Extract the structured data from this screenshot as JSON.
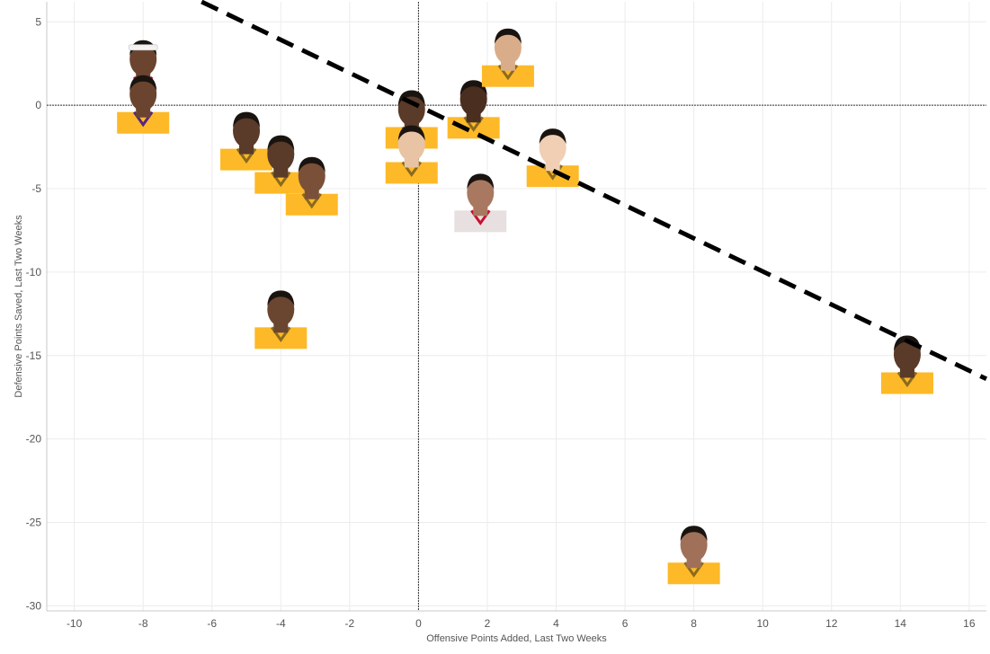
{
  "chart_data": {
    "type": "scatter",
    "xlabel": "Offensive Points Added, Last Two Weeks",
    "ylabel": "Defensive Points Saved, Last Two Weeks",
    "xlim": [
      -10.8,
      16.5
    ],
    "ylim": [
      -30.3,
      6.2
    ],
    "x_ticks": [
      -10,
      -8,
      -6,
      -4,
      -2,
      0,
      2,
      4,
      6,
      8,
      10,
      12,
      14,
      16
    ],
    "y_ticks": [
      5,
      0,
      -5,
      -10,
      -15,
      -20,
      -25,
      -30
    ],
    "grid": true,
    "zero_lines": true,
    "points": [
      {
        "x": -8,
        "y": 1.8,
        "jersey": "#ffffff",
        "trim": "#c8102e",
        "skin": "#6b4430",
        "headband": true
      },
      {
        "x": -8,
        "y": -0.3,
        "jersey": "#fdb927",
        "trim": "#552583",
        "skin": "#6b4430"
      },
      {
        "x": -5,
        "y": -2.5,
        "jersey": "#fdb927",
        "trim": "#8a6a1f",
        "skin": "#5a3a28"
      },
      {
        "x": -4,
        "y": -3.9,
        "jersey": "#fdb927",
        "trim": "#8a6a1f",
        "skin": "#5a3a28"
      },
      {
        "x": -3.1,
        "y": -5.2,
        "jersey": "#fdb927",
        "trim": "#8a6a1f",
        "skin": "#7a5038"
      },
      {
        "x": -4,
        "y": -13.2,
        "jersey": "#fdb927",
        "trim": "#8a6a1f",
        "skin": "#6a4530"
      },
      {
        "x": -0.2,
        "y": -1.2,
        "jersey": "#fdb927",
        "trim": "#8a6a1f",
        "skin": "#5a3a28"
      },
      {
        "x": -0.2,
        "y": -3.3,
        "jersey": "#fdb927",
        "trim": "#8a6a1f",
        "skin": "#e8c4a4"
      },
      {
        "x": 1.6,
        "y": -0.6,
        "jersey": "#fdb927",
        "trim": "#8a6a1f",
        "skin": "#4a2e20"
      },
      {
        "x": 2.6,
        "y": 2.5,
        "jersey": "#fdb927",
        "trim": "#8a6a1f",
        "skin": "#d9ad8a"
      },
      {
        "x": 3.9,
        "y": -3.5,
        "jersey": "#fdb927",
        "trim": "#8a6a1f",
        "skin": "#f0cfb4"
      },
      {
        "x": 1.8,
        "y": -6.2,
        "jersey": "#e8e0e0",
        "trim": "#c8102e",
        "skin": "#a87860"
      },
      {
        "x": 14.2,
        "y": -15.9,
        "jersey": "#fdb927",
        "trim": "#8a6a1f",
        "skin": "#5a3a28"
      },
      {
        "x": 8,
        "y": -27.3,
        "jersey": "#fdb927",
        "trim": "#8a6a1f",
        "skin": "#a07058"
      }
    ],
    "trendline": {
      "style": "dashed",
      "color": "#000000",
      "from": [
        -6.3,
        6.2
      ],
      "to": [
        16.5,
        -16.4
      ]
    }
  }
}
